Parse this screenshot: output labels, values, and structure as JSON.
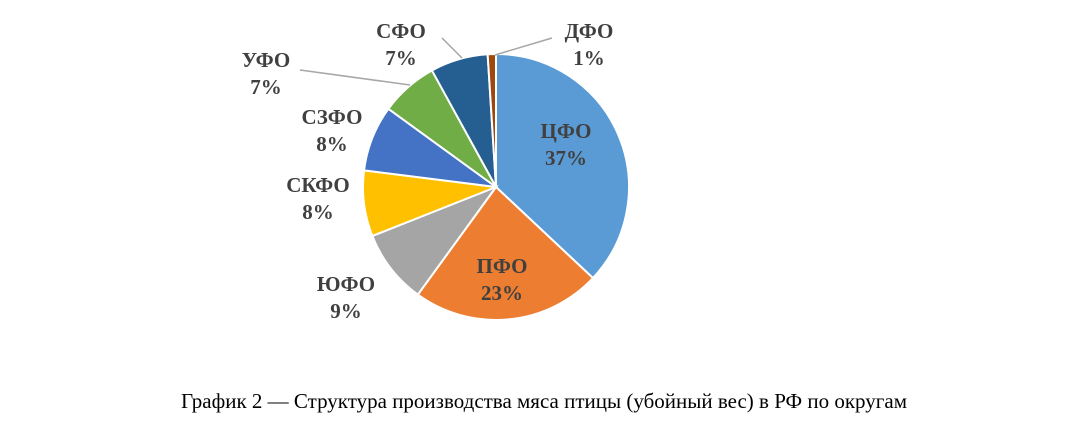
{
  "caption": "График 2 — Структура производства мяса птицы (убойный вес) в РФ по округам",
  "chart_data": {
    "type": "pie",
    "title": "",
    "data_labels_show": [
      "category",
      "percent"
    ],
    "slices": [
      {
        "label": "ЦФО",
        "value": 37,
        "percent_label": "37%",
        "color": "#5b9bd5"
      },
      {
        "label": "ПФО",
        "value": 23,
        "percent_label": "23%",
        "color": "#ed7d31"
      },
      {
        "label": "ЮФО",
        "value": 9,
        "percent_label": "9%",
        "color": "#a5a5a5"
      },
      {
        "label": "СКФО",
        "value": 8,
        "percent_label": "8%",
        "color": "#ffc000"
      },
      {
        "label": "СЗФО",
        "value": 8,
        "percent_label": "8%",
        "color": "#4472c4"
      },
      {
        "label": "УФО",
        "value": 7,
        "percent_label": "7%",
        "color": "#70ad47"
      },
      {
        "label": "СФО",
        "value": 7,
        "percent_label": "7%",
        "color": "#255e91"
      },
      {
        "label": "ДФО",
        "value": 1,
        "percent_label": "1%",
        "color": "#9e480e"
      }
    ],
    "legend": "none"
  }
}
